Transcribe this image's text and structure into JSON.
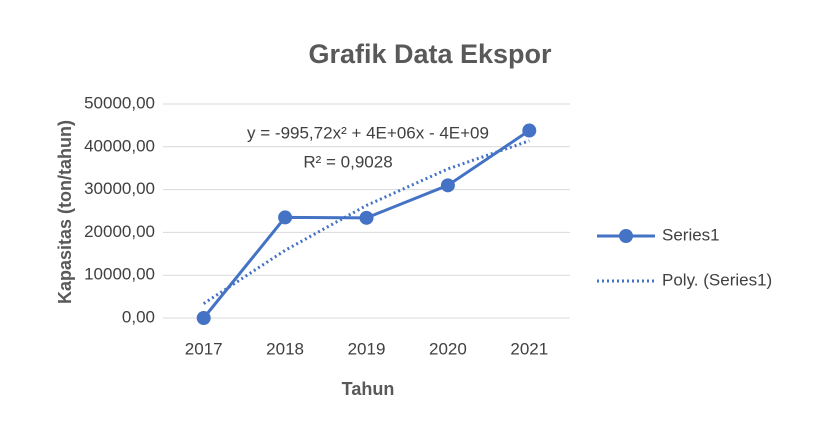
{
  "chart_data": {
    "type": "line",
    "title": "Grafik Data Ekspor",
    "x_label": "Tahun",
    "y_label": "Kapasitas (ton/tahun)",
    "categories": [
      "2017",
      "2018",
      "2019",
      "2020",
      "2021"
    ],
    "series": [
      {
        "name": "Series1",
        "color": "#4472c4",
        "style": "solid",
        "marker": "circle",
        "values": [
          0,
          23500,
          23400,
          31000,
          43800
        ]
      },
      {
        "name": "Poly. (Series1)",
        "color": "#4472c4",
        "style": "dotted",
        "marker": "none",
        "values": [
          3360,
          15810,
          26300,
          34830,
          41400
        ]
      }
    ],
    "annotations": [
      "y = -995,72x² + 4E+06x - 4E+09",
      "R² = 0,9028"
    ],
    "ylim": [
      0,
      50000
    ],
    "yticks": [
      {
        "value": 0,
        "label": "0,00"
      },
      {
        "value": 10000,
        "label": "10000,00"
      },
      {
        "value": 20000,
        "label": "20000,00"
      },
      {
        "value": 30000,
        "label": "30000,00"
      },
      {
        "value": 40000,
        "label": "40000,00"
      },
      {
        "value": 50000,
        "label": "50000,00"
      }
    ],
    "grid": true,
    "legend": "right"
  }
}
